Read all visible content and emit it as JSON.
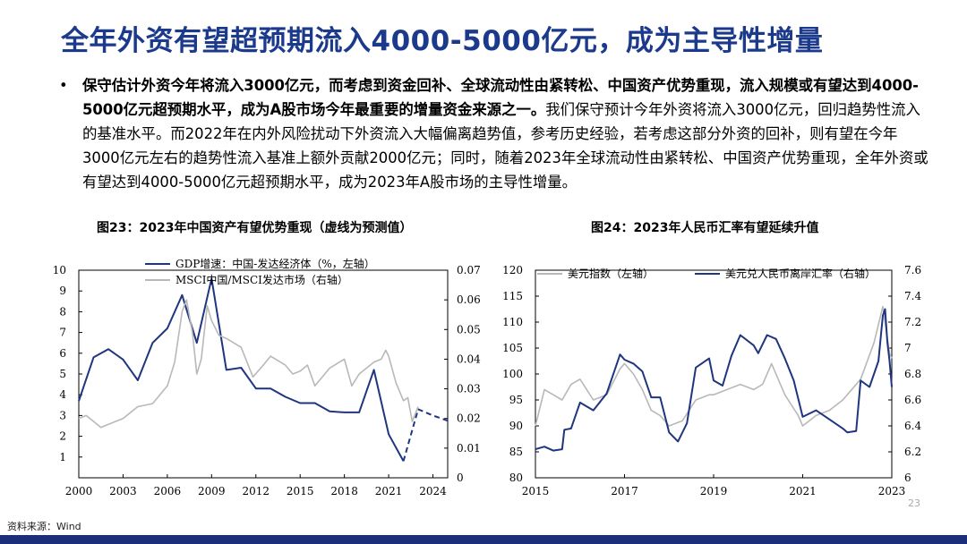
{
  "title": "全年外资有望超预期流入4000-5000亿元，成为主导性增量",
  "bullet": {
    "marker": "•",
    "bold": "保守估计外资今年将流入3000亿元，而考虑到资金回补、全球流动性由紧转松、中国资产优势重现，流入规模或有望达到4000-5000亿元超预期水平，成为A股市场今年最重要的增量资金来源之一。",
    "normal": "我们保守预计今年外资将流入3000亿元，回归趋势性流入的基准水平。而2022年在内外风险扰动下外资流入大幅偏离趋势值，参考历史经验，若考虑这部分外资的回补，则有望在今年3000亿元左右的趋势性流入基准上额外贡献2000亿元；同时，随着2023年全球流动性由紧转松、中国资产优势重现，全年外资或有望达到4000-5000亿元超预期水平，成为2023年A股市场的主导性增量。"
  },
  "source": "资料来源：Wind",
  "page_number": "23",
  "colors": {
    "title": "#1b3a8c",
    "navy": "#1f3580",
    "gray": "#b8b8b8",
    "footer": "#1b2e7a"
  },
  "chart_data": [
    {
      "type": "line",
      "title": "图23：2023年中国资产有望优势重现（虚线为预测值）",
      "x_ticks": [
        "2000",
        "2003",
        "2006",
        "2009",
        "2012",
        "2015",
        "2018",
        "2021",
        "2024"
      ],
      "xlim": [
        2000,
        2025
      ],
      "y_left": {
        "ticks": [
          "1",
          "2",
          "3",
          "4",
          "5",
          "6",
          "7",
          "8",
          "9",
          "10"
        ],
        "lim": [
          0,
          10
        ]
      },
      "y_right": {
        "ticks": [
          "0",
          "0.01",
          "0.02",
          "0.03",
          "0.04",
          "0.05",
          "0.06",
          "0.07"
        ],
        "lim": [
          0,
          0.07
        ]
      },
      "legend": [
        "GDP增速：中国-发达经济体（%，左轴）",
        "MSCI中国/MSCI发达市场（右轴）"
      ],
      "legend_position": "top-center",
      "series": [
        {
          "name": "GDP增速：中国-发达经济体（%，左轴）",
          "axis": "left",
          "style": "solid",
          "color": "#1f3580",
          "x": [
            2000,
            2001,
            2002,
            2003,
            2004,
            2005,
            2006,
            2007,
            2008,
            2009,
            2010,
            2011,
            2012,
            2013,
            2014,
            2015,
            2016,
            2017,
            2018,
            2019,
            2020,
            2021,
            2022
          ],
          "y": [
            3.7,
            5.8,
            6.2,
            5.7,
            4.7,
            6.5,
            7.2,
            8.8,
            6.5,
            9.6,
            5.2,
            5.3,
            4.3,
            4.3,
            3.9,
            3.6,
            3.6,
            3.2,
            3.15,
            3.15,
            5.2,
            2.1,
            0.8
          ]
        },
        {
          "name": "GDP增速：中国-发达经济体（预测）",
          "axis": "left",
          "style": "dashed",
          "color": "#1f3580",
          "x": [
            2022,
            2023,
            2024,
            2025
          ],
          "y": [
            0.8,
            3.3,
            3.0,
            2.75
          ]
        },
        {
          "name": "MSCI中国/MSCI发达市场（右轴）",
          "axis": "right",
          "style": "solid",
          "color": "#b8b8b8",
          "x": [
            2000,
            2000.5,
            2001,
            2001.5,
            2002,
            2003,
            2004,
            2005,
            2006,
            2006.5,
            2007,
            2007.3,
            2007.7,
            2008,
            2008.3,
            2008.7,
            2009,
            2009.5,
            2010,
            2011,
            2011.8,
            2012.5,
            2013,
            2014,
            2014.5,
            2015,
            2015.5,
            2016,
            2017,
            2018,
            2018.5,
            2019,
            2020,
            2020.5,
            2020.8,
            2021,
            2021.5,
            2022,
            2022.3,
            2022.6,
            2023
          ],
          "y": [
            0.02,
            0.021,
            0.019,
            0.017,
            0.018,
            0.02,
            0.024,
            0.025,
            0.031,
            0.039,
            0.056,
            0.06,
            0.049,
            0.035,
            0.04,
            0.058,
            0.053,
            0.048,
            0.047,
            0.044,
            0.034,
            0.038,
            0.041,
            0.038,
            0.035,
            0.036,
            0.038,
            0.031,
            0.037,
            0.04,
            0.031,
            0.035,
            0.039,
            0.04,
            0.043,
            0.041,
            0.032,
            0.026,
            0.027,
            0.019,
            0.024
          ]
        }
      ]
    },
    {
      "type": "line",
      "title": "图24：2023年人民币汇率有望延续升值",
      "x_ticks": [
        "2015",
        "2017",
        "2019",
        "2021",
        "2023"
      ],
      "xlim": [
        2015,
        2023
      ],
      "y_left": {
        "ticks": [
          "80",
          "85",
          "90",
          "95",
          "100",
          "105",
          "110",
          "115",
          "120"
        ],
        "lim": [
          80,
          120
        ]
      },
      "y_right": {
        "ticks": [
          "6",
          "6.2",
          "6.4",
          "6.6",
          "6.8",
          "7",
          "7.2",
          "7.4",
          "7.6"
        ],
        "lim": [
          6,
          7.6
        ]
      },
      "legend": [
        "美元指数（左轴）",
        "美元兑人民币离岸汇率（右轴）"
      ],
      "legend_position": "top",
      "series": [
        {
          "name": "美元指数（左轴）",
          "axis": "left",
          "style": "solid",
          "color": "#b8b8b8",
          "x": [
            2015,
            2015.2,
            2015.4,
            2015.6,
            2015.8,
            2016,
            2016.3,
            2016.6,
            2016.9,
            2017,
            2017.2,
            2017.4,
            2017.6,
            2017.8,
            2018,
            2018.3,
            2018.6,
            2018.9,
            2019,
            2019.3,
            2019.6,
            2019.9,
            2020.1,
            2020.3,
            2020.6,
            2020.9,
            2021,
            2021.3,
            2021.6,
            2021.9,
            2022,
            2022.3,
            2022.6,
            2022.8,
            2022.95,
            2023
          ],
          "y": [
            90,
            97,
            96,
            95,
            98,
            99,
            95,
            96,
            101,
            102,
            100,
            97,
            93,
            92,
            90,
            91,
            95,
            96,
            96,
            97,
            98,
            97,
            98,
            102,
            96,
            92,
            90,
            92,
            93,
            95,
            96,
            99,
            106,
            113,
            104,
            103
          ]
        },
        {
          "name": "美元兑人民币离岸汇率（右轴）",
          "axis": "right",
          "style": "solid",
          "color": "#1f3580",
          "x": [
            2015,
            2015.2,
            2015.4,
            2015.6,
            2015.65,
            2015.8,
            2016,
            2016.3,
            2016.6,
            2016.9,
            2017,
            2017.2,
            2017.4,
            2017.6,
            2017.8,
            2018,
            2018.2,
            2018.4,
            2018.6,
            2018.9,
            2019,
            2019.2,
            2019.4,
            2019.6,
            2019.9,
            2020,
            2020.2,
            2020.4,
            2020.6,
            2020.8,
            2021,
            2021.3,
            2021.6,
            2021.9,
            2022,
            2022.2,
            2022.3,
            2022.5,
            2022.7,
            2022.8,
            2022.85,
            2022.9,
            2022.95,
            2023
          ],
          "y": [
            6.22,
            6.24,
            6.21,
            6.22,
            6.37,
            6.38,
            6.58,
            6.52,
            6.65,
            6.95,
            6.91,
            6.88,
            6.82,
            6.62,
            6.62,
            6.35,
            6.28,
            6.42,
            6.85,
            6.92,
            6.75,
            6.71,
            6.94,
            7.1,
            7.02,
            6.96,
            7.1,
            7.07,
            6.92,
            6.75,
            6.47,
            6.52,
            6.45,
            6.38,
            6.35,
            6.36,
            6.75,
            6.7,
            6.9,
            7.25,
            7.3,
            7.05,
            6.9,
            6.7
          ]
        }
      ]
    }
  ]
}
